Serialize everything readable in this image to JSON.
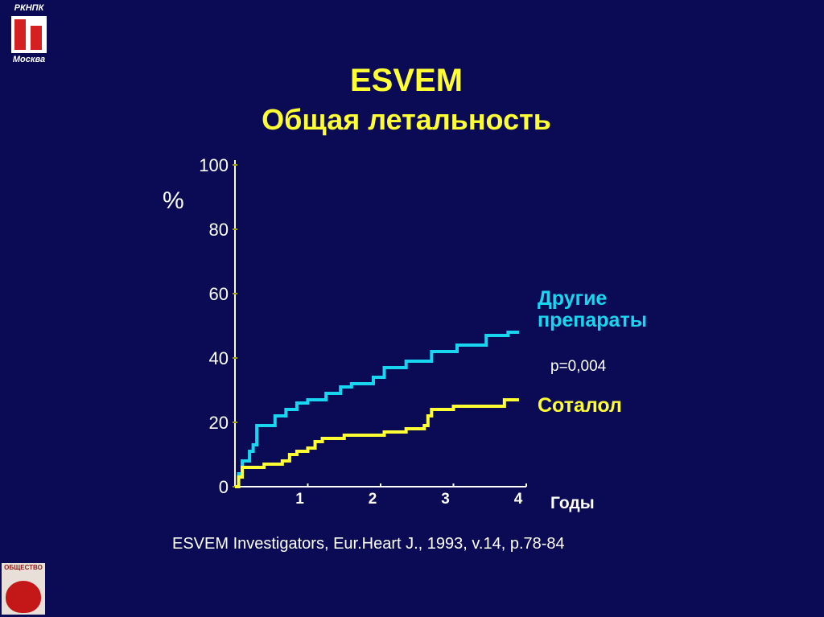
{
  "logo": {
    "top_text": "РКНПК",
    "bottom_text": "Москва"
  },
  "title_line1": "ESVEM",
  "title_line2": "Общая летальность",
  "y_unit": "%",
  "legend": {
    "other": [
      "Другие",
      "препараты"
    ],
    "sotalol": "Соталол"
  },
  "p_value": "p=0,004",
  "citation": "ESVEM Investigators, Eur.Heart J., 1993, v.14, p.78-84",
  "org_logo_text": "ОБЩЕСТВО",
  "colors": {
    "background": "#0a0a55",
    "other": "#19d6f0",
    "sotalol": "#ffff33",
    "axis": "#ffffff",
    "text": "#ffffff",
    "title": "#ffff33"
  },
  "chart_data": {
    "type": "line",
    "xlabel": "Годы",
    "ylabel": "%",
    "xlim": [
      0,
      4
    ],
    "ylim": [
      0,
      100
    ],
    "x_ticks": [
      "1",
      "2",
      "3",
      "4"
    ],
    "y_ticks": [
      "0",
      "20",
      "40",
      "60",
      "80",
      "100"
    ],
    "step": true,
    "series": [
      {
        "name": "Другие препараты",
        "color": "#19d6f0",
        "points": [
          [
            0,
            0
          ],
          [
            0.05,
            4
          ],
          [
            0.1,
            8
          ],
          [
            0.2,
            11
          ],
          [
            0.25,
            13
          ],
          [
            0.3,
            19
          ],
          [
            0.55,
            22
          ],
          [
            0.7,
            24
          ],
          [
            0.85,
            26
          ],
          [
            1.0,
            27
          ],
          [
            1.25,
            29
          ],
          [
            1.45,
            31
          ],
          [
            1.6,
            32
          ],
          [
            1.9,
            34
          ],
          [
            2.05,
            37
          ],
          [
            2.35,
            39
          ],
          [
            2.7,
            42
          ],
          [
            3.05,
            44
          ],
          [
            3.45,
            47
          ],
          [
            3.75,
            48
          ],
          [
            3.9,
            48
          ]
        ]
      },
      {
        "name": "Соталол",
        "color": "#ffff33",
        "points": [
          [
            0,
            0
          ],
          [
            0.05,
            3
          ],
          [
            0.1,
            6
          ],
          [
            0.25,
            6
          ],
          [
            0.4,
            7
          ],
          [
            0.65,
            8
          ],
          [
            0.75,
            10
          ],
          [
            0.85,
            11
          ],
          [
            1.0,
            12
          ],
          [
            1.1,
            14
          ],
          [
            1.2,
            15
          ],
          [
            1.5,
            15
          ],
          [
            1.5,
            16
          ],
          [
            1.9,
            16
          ],
          [
            2.05,
            17
          ],
          [
            2.35,
            18
          ],
          [
            2.6,
            19
          ],
          [
            2.65,
            22
          ],
          [
            2.7,
            24
          ],
          [
            2.95,
            24
          ],
          [
            3.0,
            25
          ],
          [
            3.6,
            25
          ],
          [
            3.7,
            27
          ],
          [
            3.9,
            27
          ]
        ]
      }
    ]
  }
}
